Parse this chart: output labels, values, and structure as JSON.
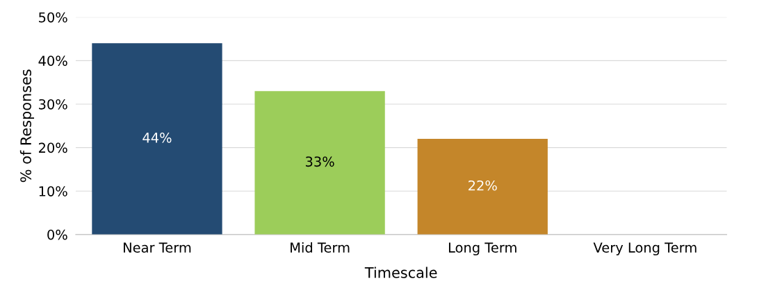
{
  "chart_data": {
    "type": "bar",
    "xlabel": "Timescale",
    "ylabel": "% of Responses",
    "categories": [
      "Near Term",
      "Mid Term",
      "Long Term",
      "Very Long Term"
    ],
    "values": [
      44,
      33,
      22,
      0
    ],
    "colors": [
      "#244b73",
      "#9ccd5a",
      "#c4862a",
      "#9ccd5a"
    ],
    "value_labels": [
      "44%",
      "33%",
      "22%",
      null
    ],
    "ylim": [
      0,
      50
    ],
    "yticks": [
      {
        "value": 0,
        "label": "0%"
      },
      {
        "value": 10,
        "label": "10%"
      },
      {
        "value": 20,
        "label": "20%"
      },
      {
        "value": 30,
        "label": "30%"
      },
      {
        "value": 40,
        "label": "40%"
      },
      {
        "value": 50,
        "label": "50%"
      }
    ],
    "grid": "y"
  }
}
